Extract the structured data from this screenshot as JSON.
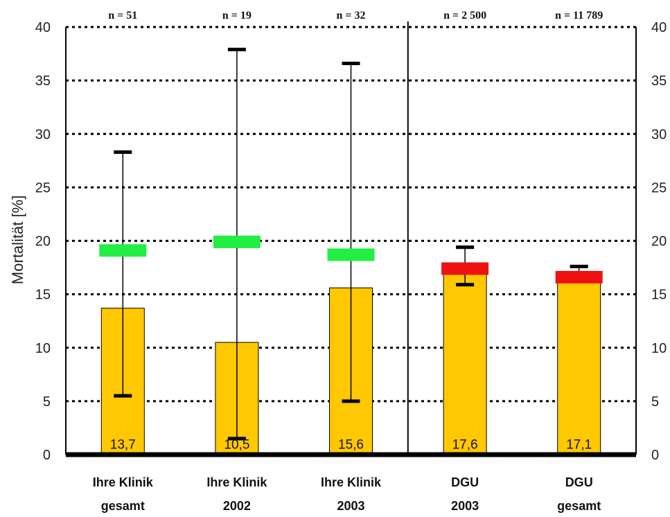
{
  "chart_data": {
    "type": "bar",
    "ylabel": "Mortalität [%]",
    "ylim": [
      0,
      40
    ],
    "yticks": [
      0,
      5,
      10,
      15,
      20,
      25,
      30,
      35,
      40
    ],
    "grid": "horizontal dotted",
    "categories": [
      {
        "line1": "Ihre Klinik",
        "line2": "gesamt"
      },
      {
        "line1": "Ihre Klinik",
        "line2": "2002"
      },
      {
        "line1": "Ihre Klinik",
        "line2": "2003"
      },
      {
        "line1": "DGU",
        "line2": "2003"
      },
      {
        "line1": "DGU",
        "line2": "gesamt"
      }
    ],
    "n_labels": [
      "n = 51",
      "n = 19",
      "n = 32",
      "n = 2 500",
      "n = 11 789"
    ],
    "values": [
      13.7,
      10.5,
      15.6,
      17.6,
      17.1
    ],
    "value_labels": [
      "13,7",
      "10,5",
      "15,6",
      "17,6",
      "17,1"
    ],
    "ci_lower": [
      5.5,
      1.5,
      5.0,
      15.9,
      16.4
    ],
    "ci_upper": [
      28.3,
      37.9,
      36.6,
      19.4,
      17.6
    ],
    "expected": [
      19.1,
      19.9,
      18.7,
      17.4,
      16.6
    ],
    "expected_colors": [
      "#22ee44",
      "#22ee44",
      "#22ee44",
      "#ee1111",
      "#ee1111"
    ],
    "bar_color": "#ffc800",
    "separator_after_index": 2
  }
}
